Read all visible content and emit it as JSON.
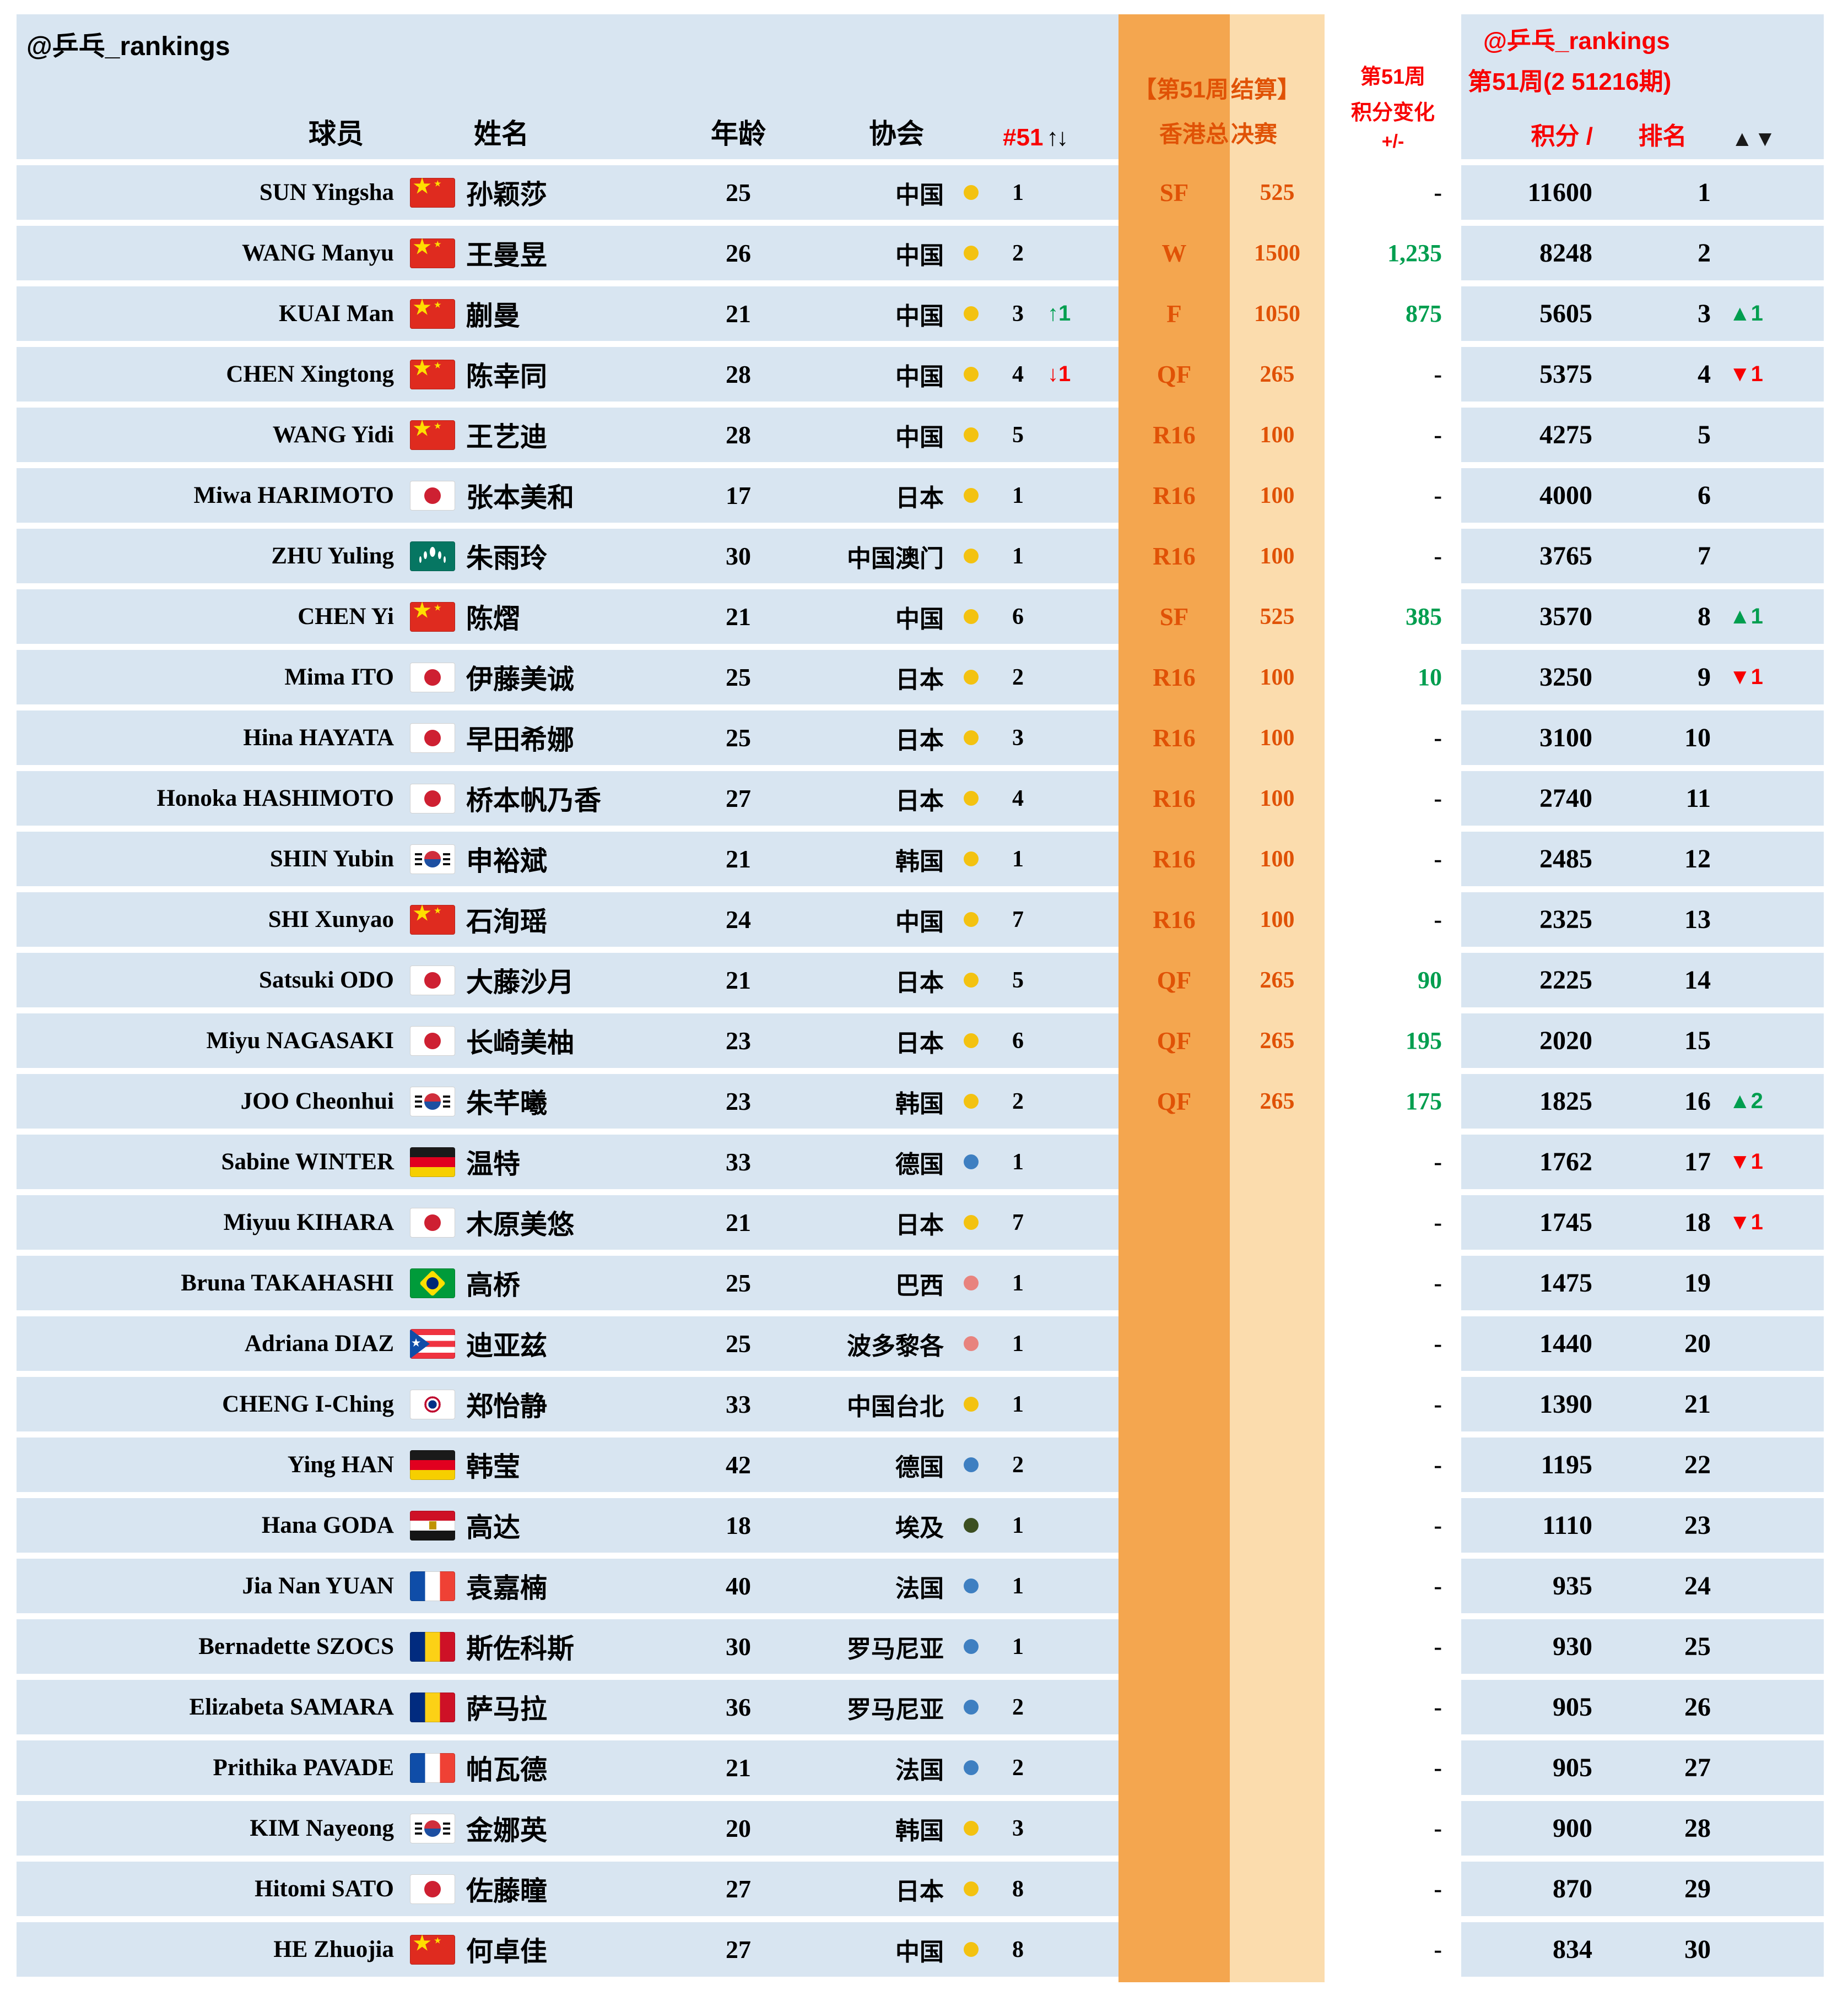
{
  "colors": {
    "band": "#D8E5F1",
    "orange_dark": "#F4A64F",
    "orange_light": "#FBDCAD",
    "orange_text": "#E05206",
    "green": "#009E4F",
    "red": "#F80000",
    "dot_asia": "#F3C211",
    "dot_europe": "#3E7FC1",
    "dot_americas": "#E8837E",
    "dot_africa": "#3C4F21"
  },
  "watermark_left": "@乒乓_rankings",
  "header": {
    "player": "球员",
    "name": "姓名",
    "age": "年龄",
    "assoc": "协会",
    "hash": "#51",
    "arrows": "↑↓",
    "event_l1a": "【第51周",
    "event_l1b": "结算】",
    "event_l2a": "香港总",
    "event_l2b": "决赛",
    "change_l1": "第51周",
    "change_l2": "积分变化",
    "change_l3": "+/-",
    "right_l1": "@乒乓_rankings",
    "right_l2": "第51周(2 51216期)",
    "right_points": "积分 /",
    "right_rank": "排名",
    "right_arrows": "▲▼"
  },
  "chart_data": {
    "type": "table",
    "title": "@乒乓_rankings 第51周(2 51216期)",
    "columns": [
      "球员",
      "姓名",
      "年龄",
      "协会",
      "#51 ↑↓",
      "【第51周 结算】香港总决赛",
      "第51周 积分变化 +/-",
      "积分",
      "排名",
      "▲▼"
    ],
    "rows": [
      {
        "player": "SUN Yingsha",
        "flag": "cn",
        "name": "孙颖莎",
        "age": "25",
        "assoc": "中国",
        "dot": "asia",
        "assoc_rank": "1",
        "assoc_change": "",
        "round": "SF",
        "round_pts": "525",
        "change": "-",
        "points": "11600",
        "rank": "1",
        "rank_change": ""
      },
      {
        "player": "WANG Manyu",
        "flag": "cn",
        "name": "王曼昱",
        "age": "26",
        "assoc": "中国",
        "dot": "asia",
        "assoc_rank": "2",
        "assoc_change": "",
        "round": "W",
        "round_pts": "1500",
        "change": "1,235",
        "points": "8248",
        "rank": "2",
        "rank_change": ""
      },
      {
        "player": "KUAI Man",
        "flag": "cn",
        "name": "蒯曼",
        "age": "21",
        "assoc": "中国",
        "dot": "asia",
        "assoc_rank": "3",
        "assoc_change": "↑1",
        "round": "F",
        "round_pts": "1050",
        "change": "875",
        "points": "5605",
        "rank": "3",
        "rank_change": "▲1"
      },
      {
        "player": "CHEN Xingtong",
        "flag": "cn",
        "name": "陈幸同",
        "age": "28",
        "assoc": "中国",
        "dot": "asia",
        "assoc_rank": "4",
        "assoc_change": "↓1",
        "round": "QF",
        "round_pts": "265",
        "change": "-",
        "points": "5375",
        "rank": "4",
        "rank_change": "▼1"
      },
      {
        "player": "WANG Yidi",
        "flag": "cn",
        "name": "王艺迪",
        "age": "28",
        "assoc": "中国",
        "dot": "asia",
        "assoc_rank": "5",
        "assoc_change": "",
        "round": "R16",
        "round_pts": "100",
        "change": "-",
        "points": "4275",
        "rank": "5",
        "rank_change": ""
      },
      {
        "player": "Miwa HARIMOTO",
        "flag": "jp",
        "name": "张本美和",
        "age": "17",
        "assoc": "日本",
        "dot": "asia",
        "assoc_rank": "1",
        "assoc_change": "",
        "round": "R16",
        "round_pts": "100",
        "change": "-",
        "points": "4000",
        "rank": "6",
        "rank_change": ""
      },
      {
        "player": "ZHU Yuling",
        "flag": "mo",
        "name": "朱雨玲",
        "age": "30",
        "assoc": "中国澳门",
        "dot": "asia",
        "assoc_rank": "1",
        "assoc_change": "",
        "round": "R16",
        "round_pts": "100",
        "change": "-",
        "points": "3765",
        "rank": "7",
        "rank_change": ""
      },
      {
        "player": "CHEN Yi",
        "flag": "cn",
        "name": "陈熠",
        "age": "21",
        "assoc": "中国",
        "dot": "asia",
        "assoc_rank": "6",
        "assoc_change": "",
        "round": "SF",
        "round_pts": "525",
        "change": "385",
        "points": "3570",
        "rank": "8",
        "rank_change": "▲1"
      },
      {
        "player": "Mima ITO",
        "flag": "jp",
        "name": "伊藤美诚",
        "age": "25",
        "assoc": "日本",
        "dot": "asia",
        "assoc_rank": "2",
        "assoc_change": "",
        "round": "R16",
        "round_pts": "100",
        "change": "10",
        "points": "3250",
        "rank": "9",
        "rank_change": "▼1"
      },
      {
        "player": "Hina HAYATA",
        "flag": "jp",
        "name": "早田希娜",
        "age": "25",
        "assoc": "日本",
        "dot": "asia",
        "assoc_rank": "3",
        "assoc_change": "",
        "round": "R16",
        "round_pts": "100",
        "change": "-",
        "points": "3100",
        "rank": "10",
        "rank_change": ""
      },
      {
        "player": "Honoka HASHIMOTO",
        "flag": "jp",
        "name": "桥本帆乃香",
        "age": "27",
        "assoc": "日本",
        "dot": "asia",
        "assoc_rank": "4",
        "assoc_change": "",
        "round": "R16",
        "round_pts": "100",
        "change": "-",
        "points": "2740",
        "rank": "11",
        "rank_change": ""
      },
      {
        "player": "SHIN Yubin",
        "flag": "kr",
        "name": "申裕斌",
        "age": "21",
        "assoc": "韩国",
        "dot": "asia",
        "assoc_rank": "1",
        "assoc_change": "",
        "round": "R16",
        "round_pts": "100",
        "change": "-",
        "points": "2485",
        "rank": "12",
        "rank_change": ""
      },
      {
        "player": "SHI Xunyao",
        "flag": "cn",
        "name": "石洵瑶",
        "age": "24",
        "assoc": "中国",
        "dot": "asia",
        "assoc_rank": "7",
        "assoc_change": "",
        "round": "R16",
        "round_pts": "100",
        "change": "-",
        "points": "2325",
        "rank": "13",
        "rank_change": ""
      },
      {
        "player": "Satsuki ODO",
        "flag": "jp",
        "name": "大藤沙月",
        "age": "21",
        "assoc": "日本",
        "dot": "asia",
        "assoc_rank": "5",
        "assoc_change": "",
        "round": "QF",
        "round_pts": "265",
        "change": "90",
        "points": "2225",
        "rank": "14",
        "rank_change": ""
      },
      {
        "player": "Miyu NAGASAKI",
        "flag": "jp",
        "name": "长崎美柚",
        "age": "23",
        "assoc": "日本",
        "dot": "asia",
        "assoc_rank": "6",
        "assoc_change": "",
        "round": "QF",
        "round_pts": "265",
        "change": "195",
        "points": "2020",
        "rank": "15",
        "rank_change": ""
      },
      {
        "player": "JOO Cheonhui",
        "flag": "kr",
        "name": "朱芊曦",
        "age": "23",
        "assoc": "韩国",
        "dot": "asia",
        "assoc_rank": "2",
        "assoc_change": "",
        "round": "QF",
        "round_pts": "265",
        "change": "175",
        "points": "1825",
        "rank": "16",
        "rank_change": "▲2"
      },
      {
        "player": "Sabine WINTER",
        "flag": "de",
        "name": "温特",
        "age": "33",
        "assoc": "德国",
        "dot": "europe",
        "assoc_rank": "1",
        "assoc_change": "",
        "round": "",
        "round_pts": "",
        "change": "-",
        "points": "1762",
        "rank": "17",
        "rank_change": "▼1"
      },
      {
        "player": "Miyuu KIHARA",
        "flag": "jp",
        "name": "木原美悠",
        "age": "21",
        "assoc": "日本",
        "dot": "asia",
        "assoc_rank": "7",
        "assoc_change": "",
        "round": "",
        "round_pts": "",
        "change": "-",
        "points": "1745",
        "rank": "18",
        "rank_change": "▼1"
      },
      {
        "player": "Bruna TAKAHASHI",
        "flag": "br",
        "name": "高桥",
        "age": "25",
        "assoc": "巴西",
        "dot": "americas",
        "assoc_rank": "1",
        "assoc_change": "",
        "round": "",
        "round_pts": "",
        "change": "-",
        "points": "1475",
        "rank": "19",
        "rank_change": ""
      },
      {
        "player": "Adriana DIAZ",
        "flag": "pr",
        "name": "迪亚兹",
        "age": "25",
        "assoc": "波多黎各",
        "dot": "americas",
        "assoc_rank": "1",
        "assoc_change": "",
        "round": "",
        "round_pts": "",
        "change": "-",
        "points": "1440",
        "rank": "20",
        "rank_change": ""
      },
      {
        "player": "CHENG I-Ching",
        "flag": "tpe",
        "name": "郑怡静",
        "age": "33",
        "assoc": "中国台北",
        "dot": "asia",
        "assoc_rank": "1",
        "assoc_change": "",
        "round": "",
        "round_pts": "",
        "change": "-",
        "points": "1390",
        "rank": "21",
        "rank_change": ""
      },
      {
        "player": "Ying HAN",
        "flag": "de",
        "name": "韩莹",
        "age": "42",
        "assoc": "德国",
        "dot": "europe",
        "assoc_rank": "2",
        "assoc_change": "",
        "round": "",
        "round_pts": "",
        "change": "-",
        "points": "1195",
        "rank": "22",
        "rank_change": ""
      },
      {
        "player": "Hana GODA",
        "flag": "eg",
        "name": "高达",
        "age": "18",
        "assoc": "埃及",
        "dot": "africa",
        "assoc_rank": "1",
        "assoc_change": "",
        "round": "",
        "round_pts": "",
        "change": "-",
        "points": "1110",
        "rank": "23",
        "rank_change": ""
      },
      {
        "player": "Jia Nan YUAN",
        "flag": "fr",
        "name": "袁嘉楠",
        "age": "40",
        "assoc": "法国",
        "dot": "europe",
        "assoc_rank": "1",
        "assoc_change": "",
        "round": "",
        "round_pts": "",
        "change": "-",
        "points": "935",
        "rank": "24",
        "rank_change": ""
      },
      {
        "player": "Bernadette SZOCS",
        "flag": "ro",
        "name": "斯佐科斯",
        "age": "30",
        "assoc": "罗马尼亚",
        "dot": "europe",
        "assoc_rank": "1",
        "assoc_change": "",
        "round": "",
        "round_pts": "",
        "change": "-",
        "points": "930",
        "rank": "25",
        "rank_change": ""
      },
      {
        "player": "Elizabeta SAMARA",
        "flag": "ro",
        "name": "萨马拉",
        "age": "36",
        "assoc": "罗马尼亚",
        "dot": "europe",
        "assoc_rank": "2",
        "assoc_change": "",
        "round": "",
        "round_pts": "",
        "change": "-",
        "points": "905",
        "rank": "26",
        "rank_change": ""
      },
      {
        "player": "Prithika PAVADE",
        "flag": "fr",
        "name": "帕瓦德",
        "age": "21",
        "assoc": "法国",
        "dot": "europe",
        "assoc_rank": "2",
        "assoc_change": "",
        "round": "",
        "round_pts": "",
        "change": "-",
        "points": "905",
        "rank": "27",
        "rank_change": ""
      },
      {
        "player": "KIM Nayeong",
        "flag": "kr",
        "name": "金娜英",
        "age": "20",
        "assoc": "韩国",
        "dot": "asia",
        "assoc_rank": "3",
        "assoc_change": "",
        "round": "",
        "round_pts": "",
        "change": "-",
        "points": "900",
        "rank": "28",
        "rank_change": ""
      },
      {
        "player": "Hitomi SATO",
        "flag": "jp",
        "name": "佐藤瞳",
        "age": "27",
        "assoc": "日本",
        "dot": "asia",
        "assoc_rank": "8",
        "assoc_change": "",
        "round": "",
        "round_pts": "",
        "change": "-",
        "points": "870",
        "rank": "29",
        "rank_change": ""
      },
      {
        "player": "HE Zhuojia",
        "flag": "cn",
        "name": "何卓佳",
        "age": "27",
        "assoc": "中国",
        "dot": "asia",
        "assoc_rank": "8",
        "assoc_change": "",
        "round": "",
        "round_pts": "",
        "change": "-",
        "points": "834",
        "rank": "30",
        "rank_change": ""
      }
    ]
  }
}
